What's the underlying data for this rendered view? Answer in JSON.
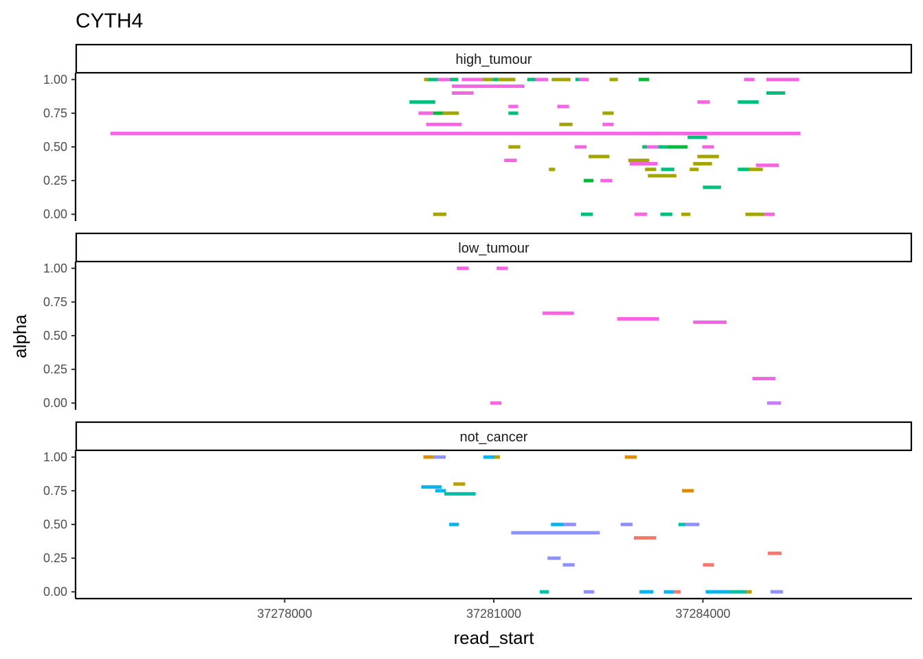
{
  "chart_data": {
    "type": "faceted-segment",
    "title": "CYTH4",
    "xlabel": "read_start",
    "ylabel": "alpha",
    "xlim": [
      37275000,
      37287000
    ],
    "ylim": [
      -0.05,
      1.05
    ],
    "x_ticks": [
      37278000,
      37281000,
      37284000
    ],
    "x_tick_labels": [
      "37278000",
      "37281000",
      "37284000"
    ],
    "y_ticks": [
      0,
      0.25,
      0.5,
      0.75,
      1
    ],
    "y_tick_labels": [
      "0.00",
      "0.25",
      "0.50",
      "0.75",
      "1.00"
    ],
    "grid": false,
    "legend": "none",
    "facets": [
      {
        "name": "high_tumour",
        "segments": [
          {
            "x0": 37280040,
            "x1": 37280200,
            "y": 1.0,
            "color": "#00BF7D"
          },
          {
            "x0": 37280000,
            "x1": 37280060,
            "y": 1.0,
            "color": "#A3A500"
          },
          {
            "x0": 37280200,
            "x1": 37280370,
            "y": 1.0,
            "color": "#F564E3"
          },
          {
            "x0": 37280370,
            "x1": 37280490,
            "y": 1.0,
            "color": "#00BF7D"
          },
          {
            "x0": 37280540,
            "x1": 37280840,
            "y": 1.0,
            "color": "#F564E3"
          },
          {
            "x0": 37280840,
            "x1": 37280990,
            "y": 1.0,
            "color": "#A3A500"
          },
          {
            "x0": 37280990,
            "x1": 37281060,
            "y": 1.0,
            "color": "#00BF7D"
          },
          {
            "x0": 37281060,
            "x1": 37281310,
            "y": 1.0,
            "color": "#A3A500"
          },
          {
            "x0": 37281480,
            "x1": 37281600,
            "y": 1.0,
            "color": "#00BF7D"
          },
          {
            "x0": 37281600,
            "x1": 37281780,
            "y": 1.0,
            "color": "#F564E3"
          },
          {
            "x0": 37281830,
            "x1": 37282100,
            "y": 1.0,
            "color": "#A3A500"
          },
          {
            "x0": 37282170,
            "x1": 37282230,
            "y": 1.0,
            "color": "#00BF7D"
          },
          {
            "x0": 37282230,
            "x1": 37282360,
            "y": 1.0,
            "color": "#F564E3"
          },
          {
            "x0": 37282660,
            "x1": 37282780,
            "y": 1.0,
            "color": "#A3A500"
          },
          {
            "x0": 37283080,
            "x1": 37283230,
            "y": 1.0,
            "color": "#00BA38"
          },
          {
            "x0": 37284590,
            "x1": 37284740,
            "y": 1.0,
            "color": "#F564E3"
          },
          {
            "x0": 37284910,
            "x1": 37285380,
            "y": 1.0,
            "color": "#F564E3"
          },
          {
            "x0": 37280400,
            "x1": 37281440,
            "y": 0.95,
            "color": "#F564E3"
          },
          {
            "x0": 37280400,
            "x1": 37280710,
            "y": 0.9,
            "color": "#F564E3"
          },
          {
            "x0": 37284910,
            "x1": 37285180,
            "y": 0.9,
            "color": "#00BF7D"
          },
          {
            "x0": 37279790,
            "x1": 37280160,
            "y": 0.833,
            "color": "#00BF7D"
          },
          {
            "x0": 37283920,
            "x1": 37284100,
            "y": 0.833,
            "color": "#F564E3"
          },
          {
            "x0": 37284500,
            "x1": 37284800,
            "y": 0.833,
            "color": "#00BF7D"
          },
          {
            "x0": 37281210,
            "x1": 37281350,
            "y": 0.8,
            "color": "#F564E3"
          },
          {
            "x0": 37281910,
            "x1": 37282080,
            "y": 0.8,
            "color": "#F564E3"
          },
          {
            "x0": 37279920,
            "x1": 37280130,
            "y": 0.75,
            "color": "#F564E3"
          },
          {
            "x0": 37280130,
            "x1": 37280270,
            "y": 0.75,
            "color": "#00BA38"
          },
          {
            "x0": 37280270,
            "x1": 37280500,
            "y": 0.75,
            "color": "#A3A500"
          },
          {
            "x0": 37281210,
            "x1": 37281350,
            "y": 0.75,
            "color": "#00BF7D"
          },
          {
            "x0": 37282560,
            "x1": 37282720,
            "y": 0.75,
            "color": "#A3A500"
          },
          {
            "x0": 37280030,
            "x1": 37280540,
            "y": 0.667,
            "color": "#F564E3"
          },
          {
            "x0": 37281940,
            "x1": 37282130,
            "y": 0.667,
            "color": "#A3A500"
          },
          {
            "x0": 37282560,
            "x1": 37282720,
            "y": 0.667,
            "color": "#F564E3"
          },
          {
            "x0": 37275500,
            "x1": 37285400,
            "y": 0.6,
            "color": "#F564E3"
          },
          {
            "x0": 37283100,
            "x1": 37283400,
            "y": 0.6,
            "color": "#F564E3"
          },
          {
            "x0": 37283780,
            "x1": 37284060,
            "y": 0.571,
            "color": "#00BF7D"
          },
          {
            "x0": 37281210,
            "x1": 37281380,
            "y": 0.5,
            "color": "#A3A500"
          },
          {
            "x0": 37282160,
            "x1": 37282330,
            "y": 0.5,
            "color": "#F564E3"
          },
          {
            "x0": 37283130,
            "x1": 37283200,
            "y": 0.5,
            "color": "#00BF7D"
          },
          {
            "x0": 37283200,
            "x1": 37283360,
            "y": 0.5,
            "color": "#F564E3"
          },
          {
            "x0": 37283360,
            "x1": 37283490,
            "y": 0.5,
            "color": "#00BF7D"
          },
          {
            "x0": 37283490,
            "x1": 37283780,
            "y": 0.5,
            "color": "#00BA38"
          },
          {
            "x0": 37283990,
            "x1": 37284160,
            "y": 0.5,
            "color": "#F564E3"
          },
          {
            "x0": 37282360,
            "x1": 37282660,
            "y": 0.429,
            "color": "#A3A500"
          },
          {
            "x0": 37283920,
            "x1": 37284230,
            "y": 0.429,
            "color": "#A3A500"
          },
          {
            "x0": 37281150,
            "x1": 37281330,
            "y": 0.4,
            "color": "#F564E3"
          },
          {
            "x0": 37282930,
            "x1": 37283230,
            "y": 0.4,
            "color": "#A3A500"
          },
          {
            "x0": 37282950,
            "x1": 37283350,
            "y": 0.375,
            "color": "#F564E3"
          },
          {
            "x0": 37283860,
            "x1": 37284130,
            "y": 0.375,
            "color": "#A3A500"
          },
          {
            "x0": 37284760,
            "x1": 37285090,
            "y": 0.364,
            "color": "#F564E3"
          },
          {
            "x0": 37281790,
            "x1": 37281880,
            "y": 0.333,
            "color": "#A3A500"
          },
          {
            "x0": 37283170,
            "x1": 37283330,
            "y": 0.333,
            "color": "#A3A500"
          },
          {
            "x0": 37283400,
            "x1": 37283590,
            "y": 0.333,
            "color": "#00BF7D"
          },
          {
            "x0": 37283810,
            "x1": 37283940,
            "y": 0.333,
            "color": "#A3A500"
          },
          {
            "x0": 37284500,
            "x1": 37284670,
            "y": 0.333,
            "color": "#00BF7D"
          },
          {
            "x0": 37284660,
            "x1": 37284860,
            "y": 0.333,
            "color": "#A3A500"
          },
          {
            "x0": 37283210,
            "x1": 37283620,
            "y": 0.286,
            "color": "#A3A500"
          },
          {
            "x0": 37282290,
            "x1": 37282430,
            "y": 0.25,
            "color": "#00BA38"
          },
          {
            "x0": 37282530,
            "x1": 37282700,
            "y": 0.25,
            "color": "#F564E3"
          },
          {
            "x0": 37284000,
            "x1": 37284260,
            "y": 0.2,
            "color": "#00BF7D"
          },
          {
            "x0": 37280130,
            "x1": 37280320,
            "y": 0.0,
            "color": "#A3A500"
          },
          {
            "x0": 37282250,
            "x1": 37282420,
            "y": 0.0,
            "color": "#00BF7D"
          },
          {
            "x0": 37283020,
            "x1": 37283200,
            "y": 0.0,
            "color": "#F564E3"
          },
          {
            "x0": 37283390,
            "x1": 37283560,
            "y": 0.0,
            "color": "#00BF7D"
          },
          {
            "x0": 37283690,
            "x1": 37283820,
            "y": 0.0,
            "color": "#A3A500"
          },
          {
            "x0": 37284610,
            "x1": 37284760,
            "y": 0.0,
            "color": "#A3A500"
          },
          {
            "x0": 37284760,
            "x1": 37284880,
            "y": 0.0,
            "color": "#A3A500"
          },
          {
            "x0": 37284880,
            "x1": 37285030,
            "y": 0.0,
            "color": "#F564E3"
          }
        ]
      },
      {
        "name": "low_tumour",
        "segments": [
          {
            "x0": 37280470,
            "x1": 37280640,
            "y": 1.0,
            "color": "#F564E3"
          },
          {
            "x0": 37281040,
            "x1": 37281200,
            "y": 1.0,
            "color": "#F564E3"
          },
          {
            "x0": 37281700,
            "x1": 37282150,
            "y": 0.667,
            "color": "#F564E3"
          },
          {
            "x0": 37282770,
            "x1": 37283370,
            "y": 0.625,
            "color": "#F564E3"
          },
          {
            "x0": 37283860,
            "x1": 37284340,
            "y": 0.6,
            "color": "#F564E3"
          },
          {
            "x0": 37284710,
            "x1": 37285040,
            "y": 0.182,
            "color": "#F564E3"
          },
          {
            "x0": 37280950,
            "x1": 37281110,
            "y": 0.0,
            "color": "#F564E3"
          },
          {
            "x0": 37284920,
            "x1": 37285120,
            "y": 0.0,
            "color": "#C77CFF"
          }
        ]
      },
      {
        "name": "not_cancer",
        "segments": [
          {
            "x0": 37279990,
            "x1": 37280140,
            "y": 1.0,
            "color": "#DE8C00"
          },
          {
            "x0": 37280140,
            "x1": 37280310,
            "y": 1.0,
            "color": "#8F91FF"
          },
          {
            "x0": 37280850,
            "x1": 37281010,
            "y": 1.0,
            "color": "#00B4F0"
          },
          {
            "x0": 37281010,
            "x1": 37281090,
            "y": 1.0,
            "color": "#B79F00"
          },
          {
            "x0": 37282880,
            "x1": 37283050,
            "y": 1.0,
            "color": "#DE8C00"
          },
          {
            "x0": 37280420,
            "x1": 37280590,
            "y": 0.8,
            "color": "#B79F00"
          },
          {
            "x0": 37279960,
            "x1": 37280250,
            "y": 0.778,
            "color": "#00B4F0"
          },
          {
            "x0": 37280160,
            "x1": 37280310,
            "y": 0.75,
            "color": "#00B4F0"
          },
          {
            "x0": 37283700,
            "x1": 37283870,
            "y": 0.75,
            "color": "#DE8C00"
          },
          {
            "x0": 37280290,
            "x1": 37280740,
            "y": 0.727,
            "color": "#00C1A3"
          },
          {
            "x0": 37280360,
            "x1": 37280500,
            "y": 0.5,
            "color": "#00B4F0"
          },
          {
            "x0": 37281820,
            "x1": 37282050,
            "y": 0.5,
            "color": "#00B4F0"
          },
          {
            "x0": 37282000,
            "x1": 37282180,
            "y": 0.5,
            "color": "#8F91FF"
          },
          {
            "x0": 37282820,
            "x1": 37282990,
            "y": 0.5,
            "color": "#8F91FF"
          },
          {
            "x0": 37283650,
            "x1": 37283750,
            "y": 0.5,
            "color": "#00C1A3"
          },
          {
            "x0": 37283750,
            "x1": 37283950,
            "y": 0.5,
            "color": "#8F91FF"
          },
          {
            "x0": 37281250,
            "x1": 37282520,
            "y": 0.438,
            "color": "#8F91FF"
          },
          {
            "x0": 37283010,
            "x1": 37283330,
            "y": 0.4,
            "color": "#F8766D"
          },
          {
            "x0": 37284930,
            "x1": 37285130,
            "y": 0.286,
            "color": "#F8766D"
          },
          {
            "x0": 37281770,
            "x1": 37281960,
            "y": 0.25,
            "color": "#8F91FF"
          },
          {
            "x0": 37281990,
            "x1": 37282160,
            "y": 0.2,
            "color": "#8F91FF"
          },
          {
            "x0": 37284000,
            "x1": 37284160,
            "y": 0.2,
            "color": "#F8766D"
          },
          {
            "x0": 37281660,
            "x1": 37281790,
            "y": 0.0,
            "color": "#00C1A3"
          },
          {
            "x0": 37282290,
            "x1": 37282440,
            "y": 0.0,
            "color": "#8F91FF"
          },
          {
            "x0": 37283090,
            "x1": 37283290,
            "y": 0.0,
            "color": "#00B4F0"
          },
          {
            "x0": 37283440,
            "x1": 37283580,
            "y": 0.0,
            "color": "#00B4F0"
          },
          {
            "x0": 37283580,
            "x1": 37283680,
            "y": 0.0,
            "color": "#F8766D"
          },
          {
            "x0": 37284040,
            "x1": 37284380,
            "y": 0.0,
            "color": "#00B4F0"
          },
          {
            "x0": 37284380,
            "x1": 37284620,
            "y": 0.0,
            "color": "#00C1A3"
          },
          {
            "x0": 37284620,
            "x1": 37284700,
            "y": 0.0,
            "color": "#B79F00"
          },
          {
            "x0": 37284970,
            "x1": 37285150,
            "y": 0.0,
            "color": "#8F91FF"
          }
        ]
      }
    ]
  }
}
